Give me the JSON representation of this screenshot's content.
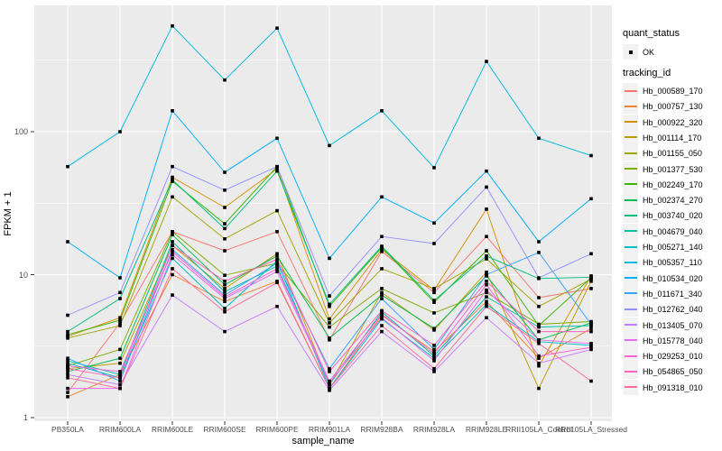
{
  "figure": {
    "panel_bg": "#EBEBEB",
    "grid_color": "#FFFFFF",
    "tick_color": "#333333",
    "axis_text_color": "#4D4D4D",
    "legend_key_bg": "#F2F2F2"
  },
  "legend": {
    "quant_status": {
      "title": "quant_status",
      "items": [
        {
          "label": "OK",
          "glyph": "black-square-point"
        }
      ]
    },
    "tracking": {
      "title": "tracking_id"
    }
  },
  "chart_data": {
    "type": "line",
    "title": "",
    "xlabel": "sample_name",
    "ylabel": "FPKM + 1",
    "y_scale": "log10",
    "y_ticks": [
      1,
      10,
      100
    ],
    "y_minor_ticks": [
      3.162,
      31.62,
      316.2
    ],
    "ylim": [
      0.94,
      780
    ],
    "grid": true,
    "legend_position": "right",
    "point_shape": "filled-black-square",
    "categories": [
      "PB350LA",
      "RRIM600LA",
      "RRIM600LE",
      "RRIM600SE",
      "RRIM600PE",
      "RRIM901LA",
      "RRIM928BA",
      "RRIM928LA",
      "RRIM928LE",
      "RRII105LA_Control",
      "RRII105LA_Stressed"
    ],
    "series": [
      {
        "name": "Hb_000589_170",
        "color": "#F8766D",
        "values": [
          1.5,
          4.6,
          20,
          14.7,
          20,
          3.5,
          14.5,
          7.5,
          18.5,
          6.9,
          8.0
        ]
      },
      {
        "name": "Hb_000757_130",
        "color": "#EA8331",
        "values": [
          1.4,
          2.0,
          10,
          6.5,
          9.0,
          1.6,
          5.2,
          2.9,
          6.5,
          2.6,
          4.2
        ]
      },
      {
        "name": "Hb_000922_320",
        "color": "#D89000",
        "values": [
          3.7,
          5.0,
          48,
          29.5,
          55,
          4.9,
          15,
          7.8,
          28.7,
          2.3,
          9.8
        ]
      },
      {
        "name": "Hb_001114_170",
        "color": "#C09B00",
        "values": [
          2.2,
          2.4,
          16,
          8.0,
          14,
          1.7,
          7.5,
          4.1,
          10.4,
          1.6,
          9.0
        ]
      },
      {
        "name": "Hb_001155_050",
        "color": "#A3A500",
        "values": [
          3.6,
          4.4,
          35,
          17.8,
          28,
          4.6,
          11,
          8.0,
          12.9,
          6.0,
          9.3
        ]
      },
      {
        "name": "Hb_001377_530",
        "color": "#7CAE00",
        "values": [
          2.3,
          3.0,
          20,
          9.9,
          12,
          4.3,
          8.0,
          5.4,
          7.5,
          4.5,
          4.7
        ]
      },
      {
        "name": "Hb_002249_170",
        "color": "#39B600",
        "values": [
          3.8,
          4.8,
          45,
          22.7,
          57,
          6.0,
          15.5,
          6.4,
          14.7,
          4.4,
          9.5
        ]
      },
      {
        "name": "Hb_002374_270",
        "color": "#00BB4E",
        "values": [
          2.1,
          2.6,
          19,
          8.5,
          13.5,
          3.6,
          7.2,
          4.2,
          9.8,
          3.5,
          4.6
        ]
      },
      {
        "name": "Hb_003740_020",
        "color": "#00BF7D",
        "values": [
          4.0,
          6.8,
          46,
          21,
          53,
          6.2,
          15.8,
          6.6,
          13.5,
          9.4,
          9.6
        ]
      },
      {
        "name": "Hb_004679_040",
        "color": "#00C1A3",
        "values": [
          2.5,
          2.0,
          17,
          7.6,
          11.5,
          1.7,
          5.5,
          2.7,
          7.0,
          4.3,
          4.4
        ]
      },
      {
        "name": "Hb_005271_140",
        "color": "#00BFC4",
        "values": [
          2.4,
          1.9,
          13,
          5.8,
          12.5,
          1.6,
          4.9,
          2.6,
          6.2,
          3.4,
          3.2
        ]
      },
      {
        "name": "Hb_005357_110",
        "color": "#00BAE0",
        "values": [
          57,
          100,
          550,
          230,
          530,
          80,
          140,
          56,
          310,
          90,
          68
        ]
      },
      {
        "name": "Hb_010534_020",
        "color": "#00B0F6",
        "values": [
          17,
          9.5,
          140,
          52,
          90,
          13,
          35,
          23,
          53,
          17,
          34
        ]
      },
      {
        "name": "Hb_011671_340",
        "color": "#35A2FF",
        "values": [
          2.6,
          1.8,
          15,
          7.2,
          12,
          2.2,
          6.8,
          3.0,
          10,
          14.3,
          4.5
        ]
      },
      {
        "name": "Hb_012762_040",
        "color": "#9590FF",
        "values": [
          5.2,
          7.5,
          57,
          39,
          57,
          7.1,
          18.5,
          16.5,
          41,
          9.5,
          14
        ]
      },
      {
        "name": "Hb_013405_070",
        "color": "#C77CFF",
        "values": [
          2.0,
          1.7,
          7.2,
          4.0,
          6.0,
          1.55,
          4.0,
          2.1,
          5.0,
          2.4,
          3.0
        ]
      },
      {
        "name": "Hb_015778_040",
        "color": "#E76BF3",
        "values": [
          1.6,
          1.6,
          13.8,
          6.8,
          10.5,
          1.75,
          5.0,
          2.5,
          7.8,
          3.5,
          3.3
        ]
      },
      {
        "name": "Hb_029253_010",
        "color": "#FA62DB",
        "values": [
          2.3,
          2.1,
          14.5,
          7.0,
          11,
          1.8,
          5.3,
          2.8,
          8.5,
          2.7,
          3.1
        ]
      },
      {
        "name": "Hb_054865_050",
        "color": "#FF62BC",
        "values": [
          2.2,
          1.9,
          16,
          9.0,
          12.8,
          2.1,
          5.6,
          3.2,
          9.0,
          4.0,
          4.0
        ]
      },
      {
        "name": "Hb_091318_010",
        "color": "#FF6A98",
        "values": [
          1.9,
          1.6,
          11,
          5.5,
          8.8,
          1.6,
          4.4,
          2.2,
          6.0,
          3.3,
          1.8
        ]
      }
    ]
  }
}
